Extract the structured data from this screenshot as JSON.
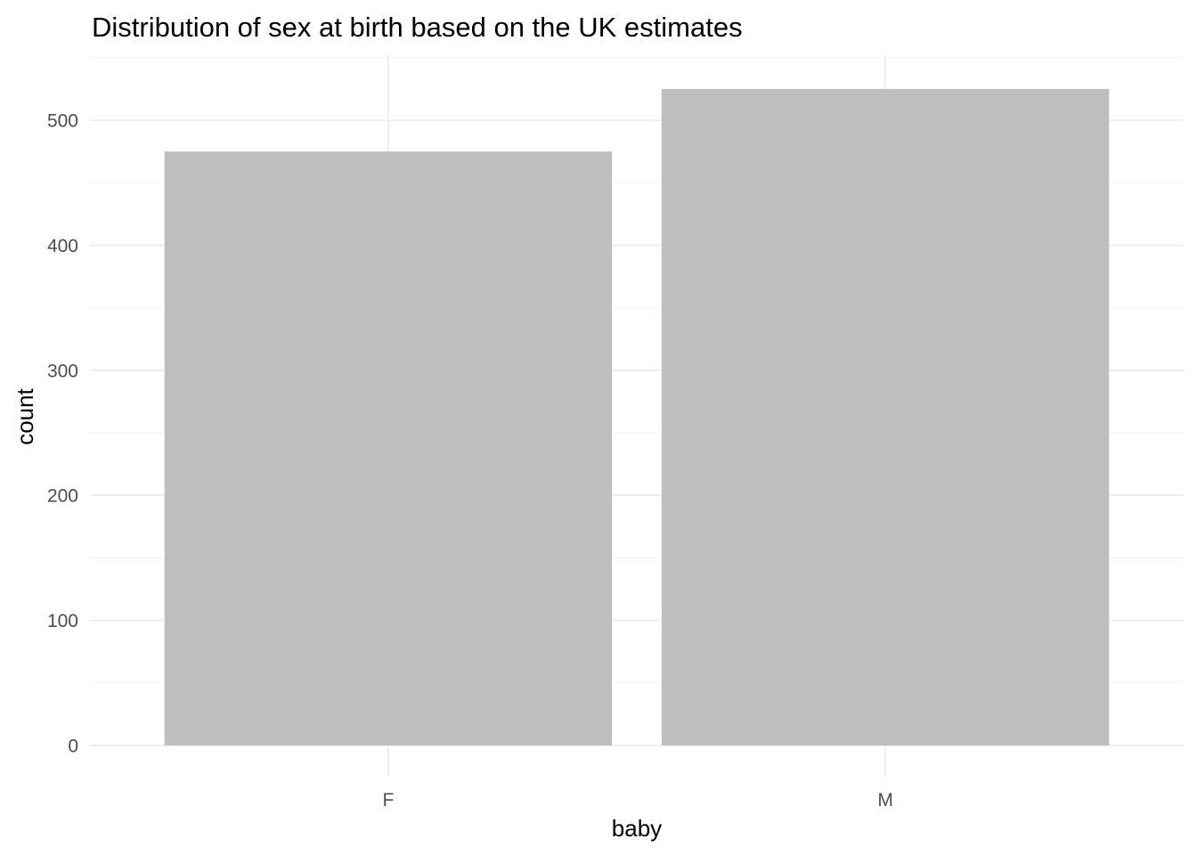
{
  "chart_data": {
    "type": "bar",
    "title": "Distribution of sex at birth based on the UK estimates",
    "xlabel": "baby",
    "ylabel": "count",
    "categories": [
      "F",
      "M"
    ],
    "values": [
      475,
      525
    ],
    "ylim": [
      0,
      550
    ],
    "yticks": [
      0,
      100,
      200,
      300,
      400,
      500
    ],
    "grid": true,
    "bar_color": "#bebebe",
    "gridline_color": "#ebebeb"
  }
}
